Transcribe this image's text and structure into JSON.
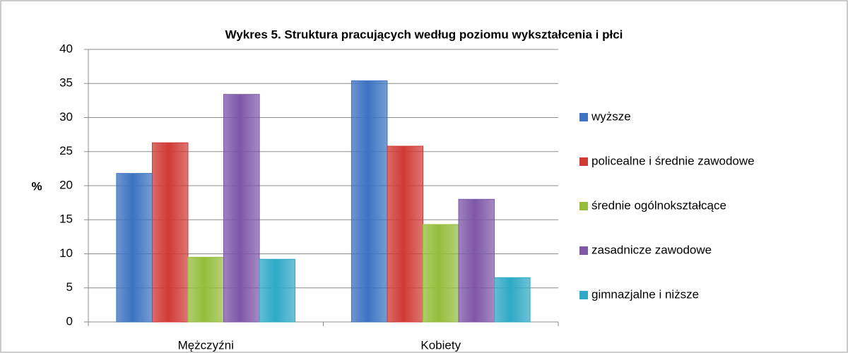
{
  "chart_data": {
    "type": "bar",
    "title": "Wykres 5. Struktura pracujących według poziomu wykształcenia i płci",
    "y_label": "%",
    "categories": [
      "Mężczyźni",
      "Kobiety"
    ],
    "series": [
      {
        "name": "wyższe",
        "color": "#3c73c2",
        "values": [
          21.8,
          35.4
        ]
      },
      {
        "name": "policealne i średnie zawodowe",
        "color": "#d03a35",
        "values": [
          26.3,
          25.8
        ]
      },
      {
        "name": "średnie ogólnokształcące",
        "color": "#95bd3b",
        "values": [
          9.5,
          14.3
        ]
      },
      {
        "name": "zasadnicze zawodowe",
        "color": "#7e57a8",
        "values": [
          33.4,
          18.0
        ]
      },
      {
        "name": "gimnazjalne i niższe",
        "color": "#2ea9c6",
        "values": [
          9.2,
          6.5
        ]
      }
    ],
    "ylim": [
      0,
      40
    ],
    "yticks": [
      0,
      5,
      10,
      15,
      20,
      25,
      30,
      35,
      40
    ],
    "grid": true,
    "legend": "right"
  }
}
